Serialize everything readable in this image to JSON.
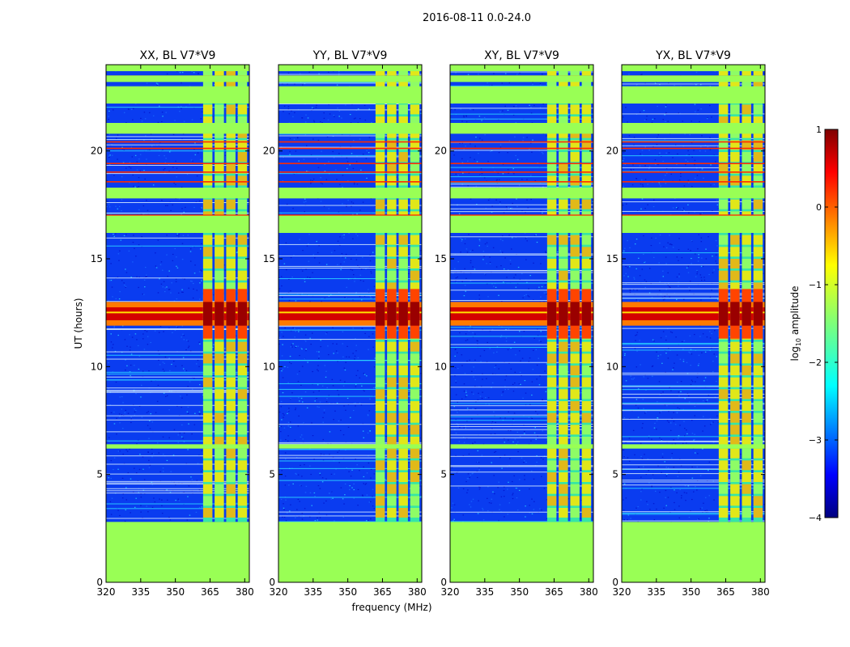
{
  "figure": {
    "suptitle": "2016-08-11 0.0-24.0"
  },
  "colors": {
    "flag_fill": "#99ff55",
    "noise_floor": "#0a3cf0"
  },
  "chart_data": {
    "type": "heatmap",
    "title": "2016-08-11 0.0-24.0",
    "xlabel": "frequency (MHz)",
    "ylabel": "UT (hours)",
    "xlim": [
      320,
      382
    ],
    "ylim": [
      0,
      24
    ],
    "xticks": [
      320,
      335,
      350,
      365,
      380
    ],
    "yticks": [
      0,
      5,
      10,
      15,
      20
    ],
    "panels": [
      {
        "title": "XX, BL V7*V9",
        "polarization": "XX"
      },
      {
        "title": "YY, BL V7*V9",
        "polarization": "YY"
      },
      {
        "title": "XY, BL V7*V9",
        "polarization": "XY"
      },
      {
        "title": "YX, BL V7*V9",
        "polarization": "YX"
      }
    ],
    "colorbar": {
      "label": "log10 amplitude",
      "label_text": "log",
      "label_sub": "10",
      "label_suffix": " amplitude",
      "range": [
        -4,
        1
      ],
      "ticks": [
        -4,
        -3,
        -2,
        -1,
        0,
        1
      ],
      "tick_labels": [
        "−4",
        "−3",
        "−2",
        "−1",
        "0",
        "1"
      ],
      "colormap": "jet"
    },
    "flagged_time_bands_hours": [
      [
        0.0,
        2.8
      ],
      [
        6.2,
        6.4
      ],
      [
        16.2,
        17.0
      ],
      [
        17.8,
        18.3
      ],
      [
        20.8,
        21.3
      ],
      [
        22.2,
        23.0
      ],
      [
        23.2,
        23.5
      ],
      [
        23.7,
        24.0
      ]
    ],
    "rfi_channels_MHz": [
      [
        362,
        366
      ],
      [
        367,
        371
      ],
      [
        372,
        376
      ],
      [
        377,
        381
      ]
    ],
    "strong_emission_time_hours": [
      11.9,
      13.0
    ],
    "data_gap_hours": [
      [
        15.2,
        16.2
      ],
      [
        17.0,
        17.4
      ],
      [
        21.3,
        22.2
      ]
    ]
  }
}
